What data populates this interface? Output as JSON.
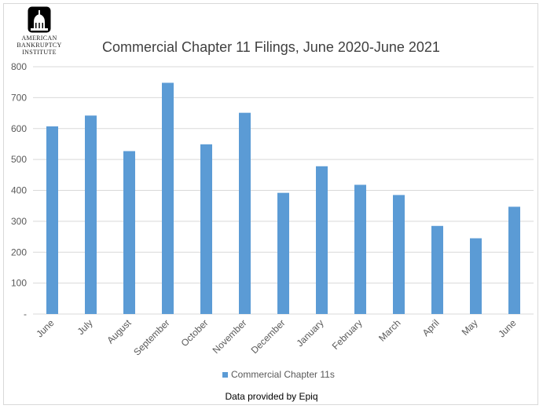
{
  "logo": {
    "lines": [
      "American",
      "Bankruptcy",
      "Institute"
    ]
  },
  "footer": "Data provided by Epiq",
  "chart_data": {
    "type": "bar",
    "title": "Commercial Chapter 11 Filings, June 2020-June 2021",
    "categories": [
      "June",
      "July",
      "August",
      "September",
      "October",
      "November",
      "December",
      "January",
      "February",
      "March",
      "April",
      "May",
      "June"
    ],
    "series": [
      {
        "name": "Commercial Chapter 11s",
        "values": [
          607,
          642,
          527,
          748,
          549,
          651,
          392,
          478,
          418,
          385,
          285,
          245,
          347
        ],
        "color": "#5b9bd5"
      }
    ],
    "ylim": [
      0,
      800
    ],
    "yticks": [
      0,
      100,
      200,
      300,
      400,
      500,
      600,
      700,
      800
    ],
    "ytick_labels": [
      "-",
      "100",
      "200",
      "300",
      "400",
      "500",
      "600",
      "700",
      "800"
    ],
    "grid": true,
    "legend": "bottom",
    "colors": {
      "bar": "#5b9bd5",
      "grid": "#d9d9d9",
      "text": "#595959"
    }
  }
}
